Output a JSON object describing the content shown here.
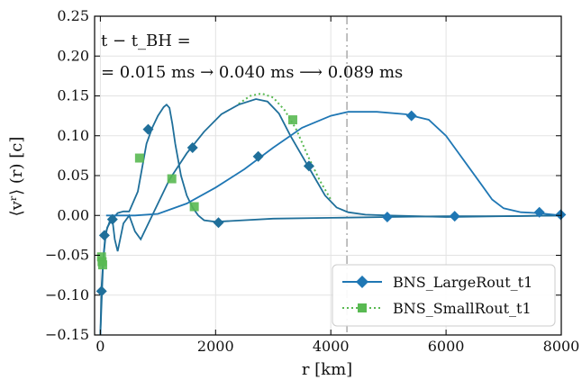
{
  "chart_data": {
    "type": "line",
    "xlabel": "r [km]",
    "ylabel": "⟨vʳ⟩ (r) [c]",
    "xlim": [
      -100,
      8000
    ],
    "ylim": [
      -0.15,
      0.25
    ],
    "xticks": [
      0,
      2000,
      4000,
      6000,
      8000
    ],
    "xtick_labels": [
      "0",
      "2000",
      "4000",
      "6000",
      "8000"
    ],
    "yticks": [
      -0.15,
      -0.1,
      -0.05,
      0.0,
      0.05,
      0.1,
      0.15,
      0.2,
      0.25
    ],
    "ytick_labels": [
      "−0.15",
      "−0.10",
      "−0.05",
      "0.00",
      "0.05",
      "0.10",
      "0.15",
      "0.20",
      "0.25"
    ],
    "grid": true,
    "legend_position": "lower-right",
    "annotation_line1": "t − t_BH =",
    "annotation_line2": "= 0.015 ms → 0.040 ms ⟶ 0.089 ms",
    "vline_x": 4280,
    "colors": {
      "large": "#1f77b4",
      "large_dark": "#1f6f9a",
      "small": "#59b952",
      "vline": "#b0b0b0"
    },
    "series": [
      {
        "name": "BNS_LargeRout_t1",
        "style": "solid",
        "marker": "diamond",
        "curves": [
          {
            "label": "0.015 ms",
            "x": [
              0,
              20,
              50,
              80,
              120,
              200,
              300,
              400,
              500,
              650,
              800,
              900,
              1000,
              1100,
              1150,
              1200,
              1250,
              1300,
              1400,
              1500,
              1600,
              1700,
              1800,
              2000,
              3000,
              4000,
              5000,
              6000,
              7000,
              8000
            ],
            "y": [
              -0.15,
              -0.09,
              -0.055,
              -0.03,
              -0.015,
              -0.005,
              0.003,
              0.005,
              0.005,
              0.03,
              0.09,
              0.11,
              0.125,
              0.136,
              0.139,
              0.135,
              0.115,
              0.09,
              0.05,
              0.025,
              0.01,
              0.0,
              -0.006,
              -0.008,
              -0.004,
              -0.003,
              -0.002,
              -0.001,
              -0.001,
              0.0
            ],
            "markers_x": [
              20,
              70,
              830,
              2050
            ],
            "markers_y": [
              -0.095,
              -0.025,
              0.108,
              -0.009
            ]
          },
          {
            "label": "0.040 ms",
            "x": [
              0,
              50,
              100,
              150,
              200,
              250,
              300,
              400,
              500,
              600,
              700,
              800,
              1000,
              1200,
              1500,
              1800,
              2100,
              2400,
              2700,
              2900,
              3100,
              3300,
              3500,
              3700,
              3900,
              4100,
              4300,
              4600,
              5000,
              6000,
              7000,
              8000
            ],
            "y": [
              -0.15,
              -0.055,
              -0.02,
              -0.01,
              0.0,
              -0.03,
              -0.045,
              -0.01,
              0.0,
              -0.02,
              -0.03,
              -0.015,
              0.015,
              0.045,
              0.078,
              0.105,
              0.127,
              0.139,
              0.146,
              0.143,
              0.128,
              0.1,
              0.075,
              0.05,
              0.025,
              0.01,
              0.004,
              0.001,
              0.0,
              -0.002,
              -0.001,
              0.0
            ],
            "markers_x": [
              210,
              1600,
              2740,
              3620
            ],
            "markers_y": [
              -0.005,
              0.085,
              0.074,
              0.062
            ]
          },
          {
            "label": "0.089 ms",
            "x": [
              100,
              600,
              1000,
              1500,
              2000,
              2500,
              3000,
              3500,
              4000,
              4300,
              4800,
              5300,
              5700,
              6000,
              6300,
              6600,
              6800,
              7000,
              7300,
              7600,
              8000
            ],
            "y": [
              0.0,
              0.0,
              0.002,
              0.015,
              0.035,
              0.058,
              0.085,
              0.11,
              0.125,
              0.13,
              0.13,
              0.127,
              0.12,
              0.1,
              0.07,
              0.04,
              0.02,
              0.009,
              0.004,
              0.003,
              0.0
            ],
            "markers_x": [
              4980,
              5400,
              6150,
              7620,
              7990
            ],
            "markers_y": [
              -0.002,
              0.125,
              -0.001,
              0.004,
              0.001
            ]
          }
        ]
      },
      {
        "name": "BNS_SmallRout_t1",
        "style": "dotted",
        "marker": "square",
        "curves": [
          {
            "label": "0.040 ms",
            "x": [
              2400,
              2600,
              2800,
              3000,
              3200,
              3400,
              3600,
              3800,
              4000
            ],
            "y": [
              0.14,
              0.15,
              0.153,
              0.148,
              0.132,
              0.108,
              0.075,
              0.045,
              0.02
            ],
            "markers_x": [
              3340
            ],
            "markers_y": [
              0.12
            ]
          }
        ],
        "markers_x": [
          20,
          30,
          40,
          680,
          1240,
          1630
        ],
        "markers_y": [
          -0.052,
          -0.058,
          -0.062,
          0.072,
          0.046,
          0.011
        ]
      }
    ]
  }
}
